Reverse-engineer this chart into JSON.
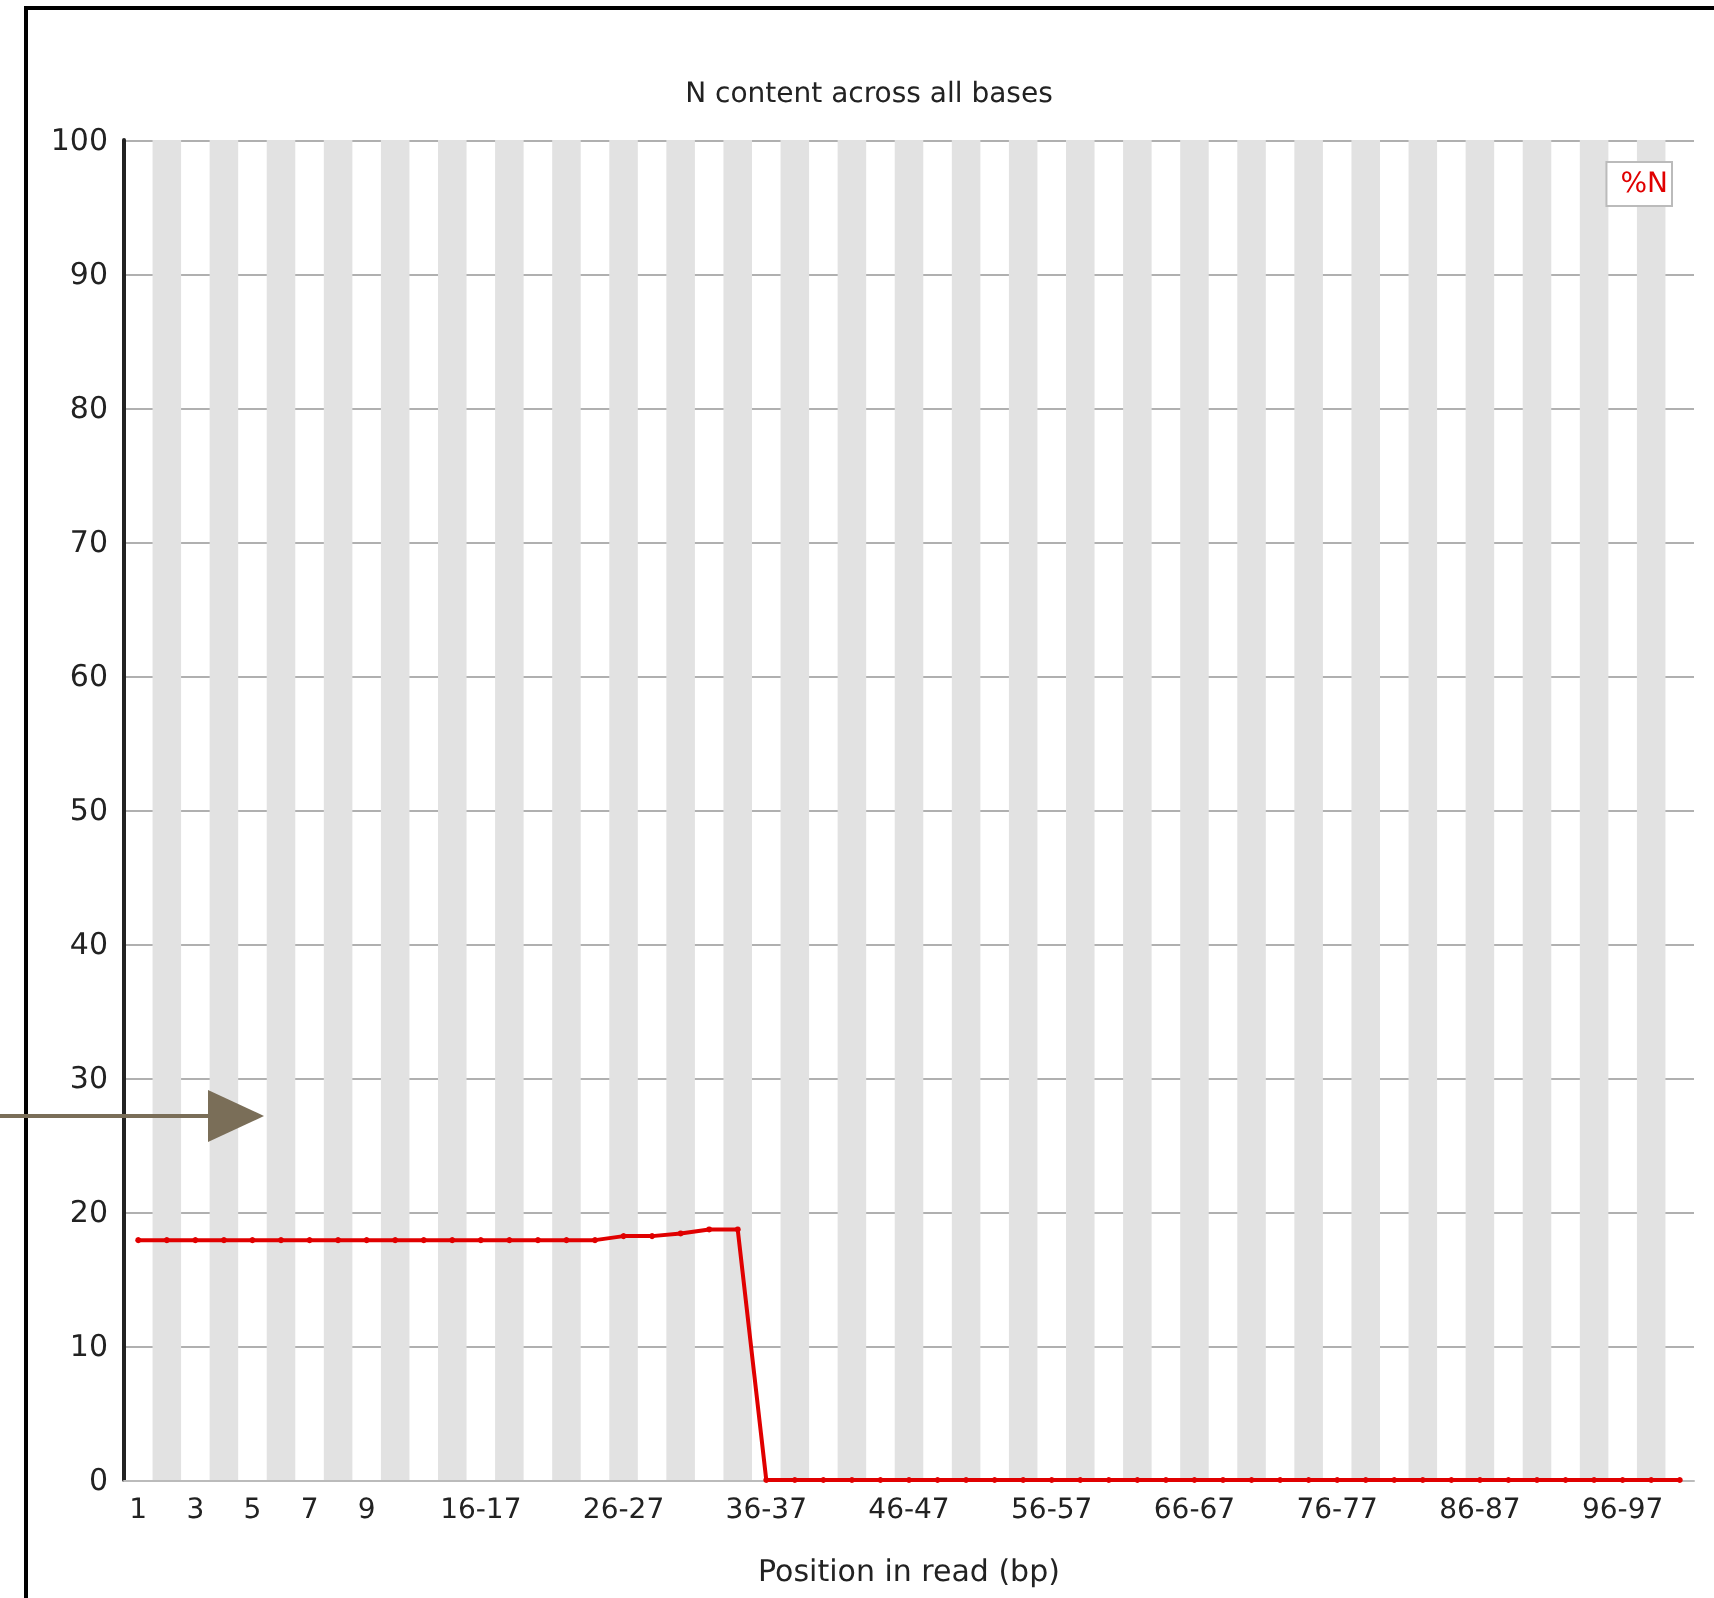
{
  "chart_data": {
    "type": "line",
    "title": "N content across all bases",
    "xlabel": "Position in read (bp)",
    "categories": [
      "1",
      null,
      "3",
      null,
      "5",
      null,
      "7",
      null,
      "9",
      null,
      null,
      null,
      "16-17",
      null,
      null,
      null,
      null,
      "26-27",
      null,
      null,
      null,
      null,
      "36-37",
      null,
      null,
      null,
      null,
      "46-47",
      null,
      null,
      null,
      null,
      "56-57",
      null,
      null,
      null,
      null,
      "66-67",
      null,
      null,
      null,
      null,
      "76-77",
      null,
      null,
      null,
      null,
      "86-87",
      null,
      null,
      null,
      null,
      "96-97",
      null,
      null
    ],
    "series": [
      {
        "name": "%N",
        "color": "#e00000",
        "values": [
          17.9,
          17.9,
          17.9,
          17.9,
          17.9,
          17.9,
          17.9,
          17.9,
          17.9,
          17.9,
          17.9,
          17.9,
          17.9,
          17.9,
          17.9,
          17.9,
          17.9,
          18.2,
          18.2,
          18.4,
          18.7,
          18.7,
          0,
          0,
          0,
          0,
          0,
          0,
          0,
          0,
          0,
          0,
          0,
          0,
          0,
          0,
          0,
          0,
          0,
          0,
          0,
          0,
          0,
          0,
          0,
          0,
          0,
          0,
          0,
          0,
          0,
          0,
          0,
          0,
          0
        ]
      }
    ],
    "ylim": [
      0,
      100
    ],
    "yticks": [
      0,
      10,
      20,
      30,
      40,
      50,
      60,
      70,
      80,
      90,
      100
    ],
    "grid": "y",
    "legend": "top right",
    "marker": "circle",
    "line_style": "solid"
  }
}
